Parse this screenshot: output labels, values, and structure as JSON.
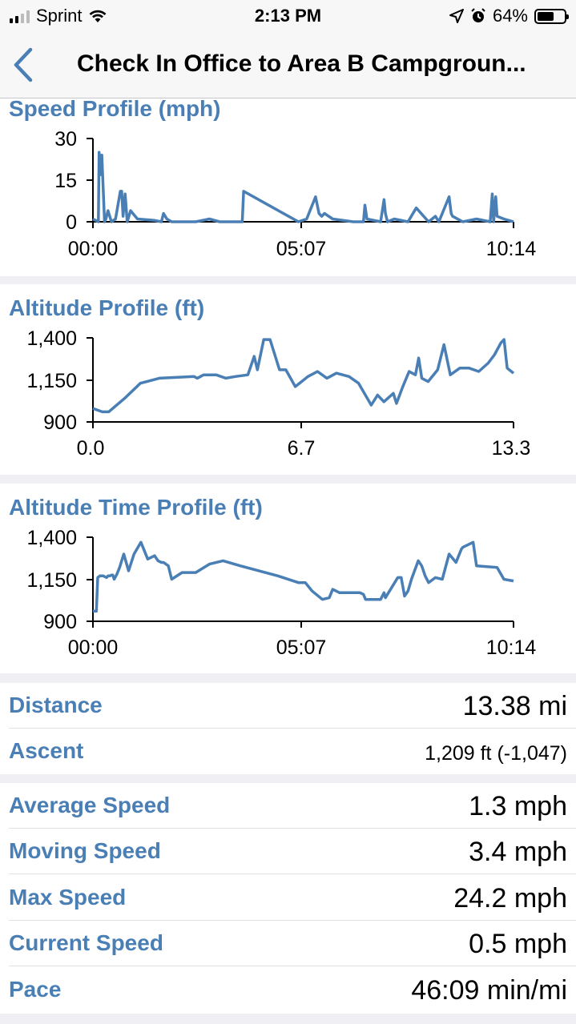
{
  "status": {
    "carrier": "Sprint",
    "time": "2:13 PM",
    "battery": "64%",
    "battery_level": 0.64,
    "icons": [
      "signal-bars",
      "wifi-icon",
      "location-arrow-icon",
      "alarm-clock-icon",
      "battery-icon"
    ]
  },
  "nav": {
    "title": "Check In Office to Area B Campgroun...",
    "back_icon": "chevron-left-icon",
    "accent": "#4a7fb5"
  },
  "charts": {
    "speed": {
      "title": "Speed Profile (mph)",
      "y_ticks": [
        "30",
        "15",
        "0"
      ],
      "x_ticks": [
        "00:00",
        "05:07",
        "10:14"
      ]
    },
    "altitude": {
      "title": "Altitude Profile (ft)",
      "y_ticks": [
        "1,400",
        "1,150",
        "900"
      ],
      "x_ticks": [
        "0.0",
        "6.7",
        "13.3"
      ]
    },
    "altitude_time": {
      "title": "Altitude Time Profile (ft)",
      "y_ticks": [
        "1,400",
        "1,150",
        "900"
      ],
      "x_ticks": [
        "00:00",
        "05:07",
        "10:14"
      ]
    }
  },
  "chart_data": [
    {
      "type": "line",
      "title": "Speed Profile (mph)",
      "xlabel": "",
      "ylabel": "",
      "x_unit": "minutes",
      "xlim": [
        0,
        614
      ],
      "ylim": [
        0,
        30
      ],
      "series": [
        {
          "x": [
            0,
            8,
            9,
            11,
            13,
            15,
            17,
            19,
            22,
            27,
            33,
            40,
            42,
            44,
            47,
            50,
            55,
            65,
            90,
            100,
            103,
            108,
            115,
            150,
            170,
            185,
            218,
            220,
            300,
            312,
            325,
            330,
            334,
            338,
            350,
            380,
            395,
            397,
            400,
            420,
            425,
            427,
            430,
            440,
            460,
            472,
            490,
            500,
            505,
            520,
            523,
            525,
            540,
            560,
            580,
            583,
            585,
            588,
            590,
            600,
            614
          ],
          "values": [
            1,
            0,
            25,
            17,
            24,
            12,
            0,
            1,
            4,
            0,
            1,
            11,
            11,
            2,
            10,
            0,
            4,
            1,
            0.5,
            0,
            3,
            1,
            0,
            0,
            1,
            0,
            0,
            11,
            0,
            1,
            9,
            3,
            2,
            3,
            1,
            0,
            0,
            6,
            1,
            0,
            8,
            3,
            0,
            1,
            0,
            5,
            0,
            2,
            0,
            9,
            3,
            2,
            0,
            1,
            0,
            10,
            0,
            9,
            2,
            1,
            0
          ]
        }
      ]
    },
    {
      "type": "line",
      "title": "Altitude Profile (ft)",
      "xlabel": "",
      "ylabel": "",
      "xlim": [
        0,
        13.3
      ],
      "ylim": [
        900,
        1400
      ],
      "series": [
        {
          "x": [
            0.0,
            0.3,
            0.5,
            1.0,
            1.5,
            2.1,
            3.2,
            3.3,
            3.5,
            3.9,
            4.2,
            4.5,
            4.9,
            5.1,
            5.2,
            5.4,
            5.6,
            5.9,
            6.1,
            6.4,
            6.8,
            7.1,
            7.4,
            7.7,
            8.1,
            8.4,
            8.8,
            9.0,
            9.2,
            9.5,
            9.6,
            9.8,
            10.0,
            10.2,
            10.3,
            10.4,
            10.6,
            10.9,
            11.1,
            11.3,
            11.6,
            11.9,
            12.2,
            12.5,
            12.7,
            12.9,
            13.0,
            13.1,
            13.3
          ],
          "values": [
            980,
            960,
            960,
            1040,
            1130,
            1160,
            1170,
            1160,
            1180,
            1180,
            1160,
            1170,
            1180,
            1290,
            1210,
            1390,
            1390,
            1210,
            1210,
            1110,
            1170,
            1200,
            1160,
            1190,
            1170,
            1130,
            1000,
            1060,
            1020,
            1070,
            1010,
            1110,
            1200,
            1180,
            1280,
            1160,
            1140,
            1210,
            1360,
            1180,
            1220,
            1220,
            1200,
            1250,
            1300,
            1370,
            1390,
            1220,
            1190
          ]
        }
      ]
    },
    {
      "type": "line",
      "title": "Altitude Time Profile (ft)",
      "xlabel": "",
      "ylabel": "",
      "x_unit": "minutes",
      "xlim": [
        0,
        614
      ],
      "ylim": [
        900,
        1400
      ],
      "series": [
        {
          "x": [
            0,
            5,
            7,
            10,
            15,
            20,
            22,
            25,
            27,
            29,
            31,
            35,
            39,
            45,
            52,
            60,
            70,
            80,
            90,
            95,
            100,
            103,
            110,
            115,
            130,
            150,
            170,
            190,
            215,
            270,
            300,
            310,
            320,
            335,
            345,
            350,
            360,
            390,
            395,
            398,
            420,
            425,
            427,
            445,
            450,
            455,
            460,
            465,
            475,
            480,
            485,
            490,
            500,
            510,
            520,
            530,
            538,
            540,
            555,
            560,
            590,
            600,
            614
          ],
          "values": [
            960,
            960,
            1160,
            1170,
            1170,
            1160,
            1170,
            1170,
            1175,
            1175,
            1150,
            1180,
            1220,
            1300,
            1200,
            1300,
            1370,
            1270,
            1290,
            1260,
            1250,
            1250,
            1230,
            1150,
            1190,
            1190,
            1240,
            1260,
            1230,
            1170,
            1130,
            1130,
            1080,
            1030,
            1040,
            1090,
            1070,
            1070,
            1060,
            1030,
            1030,
            1070,
            1040,
            1160,
            1160,
            1050,
            1080,
            1150,
            1260,
            1230,
            1170,
            1130,
            1160,
            1150,
            1300,
            1250,
            1330,
            1340,
            1370,
            1230,
            1220,
            1150,
            1140
          ]
        }
      ]
    }
  ],
  "stats_group1": [
    {
      "label": "Distance",
      "value": "13.38 mi"
    },
    {
      "label": "Ascent",
      "value": "1,209 ft (-1,047)"
    }
  ],
  "stats_group2": [
    {
      "label": "Average Speed",
      "value": "1.3 mph"
    },
    {
      "label": "Moving Speed",
      "value": "3.4 mph"
    },
    {
      "label": "Max Speed",
      "value": "24.2 mph"
    },
    {
      "label": "Current Speed",
      "value": "0.5 mph"
    },
    {
      "label": "Pace",
      "value": "46:09 min/mi"
    }
  ]
}
